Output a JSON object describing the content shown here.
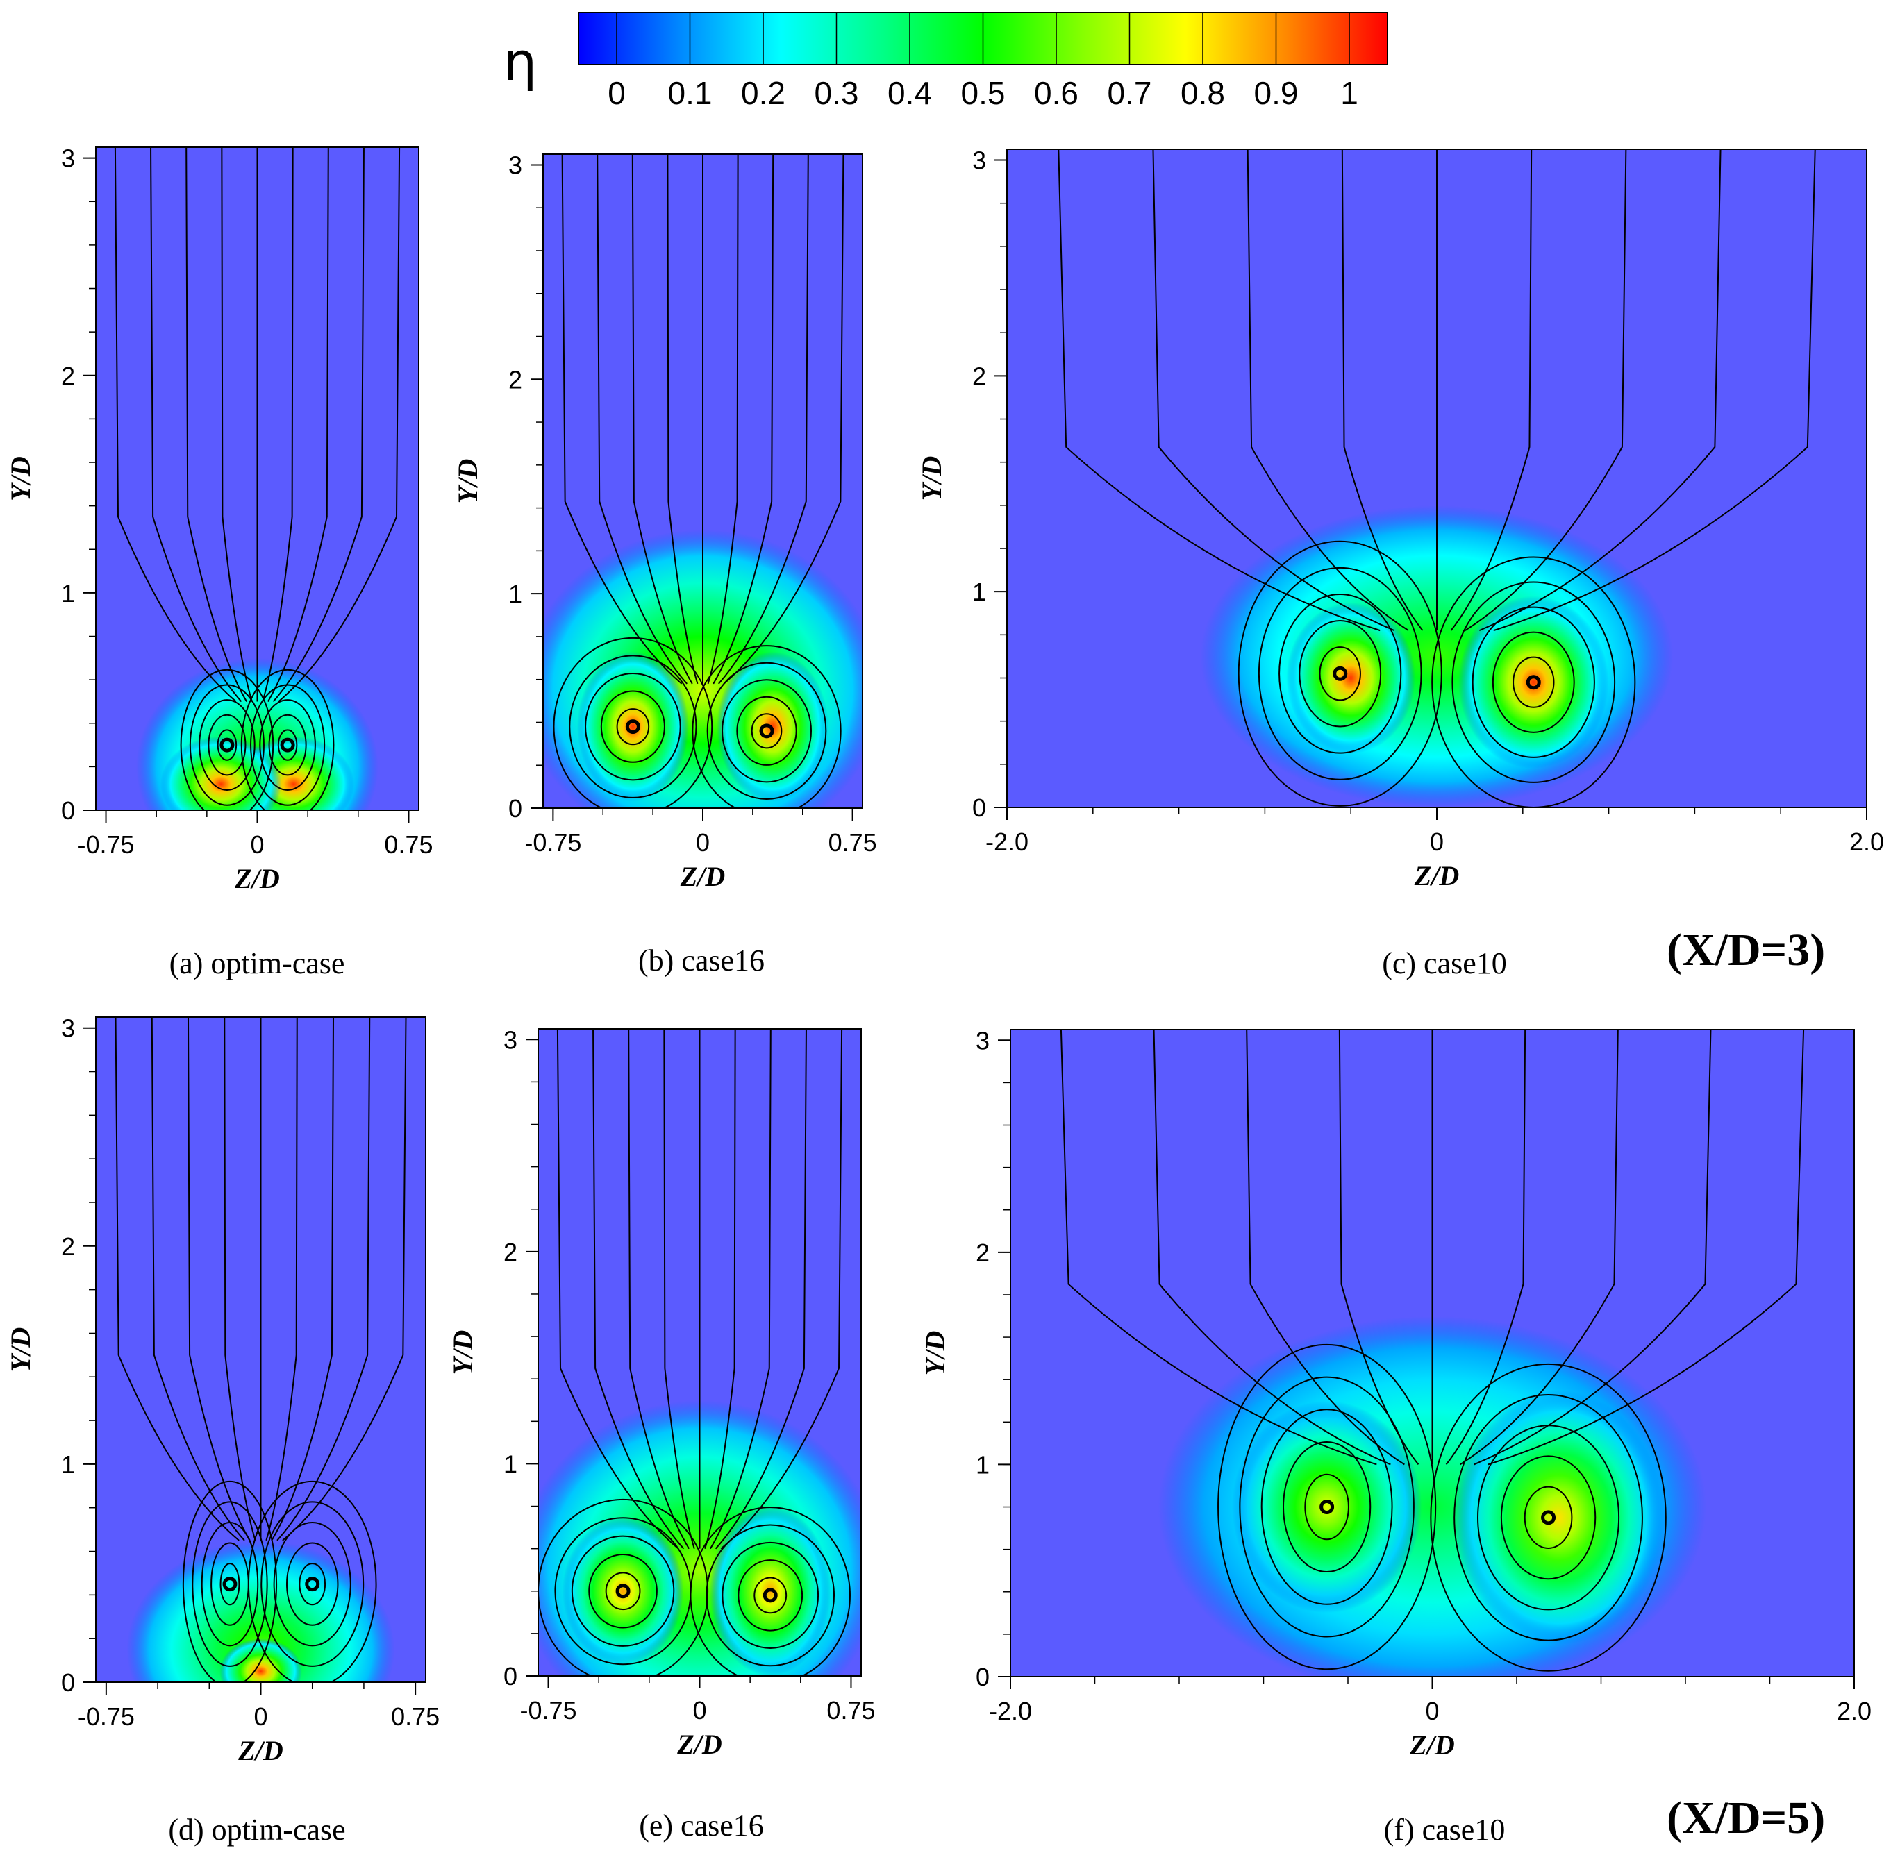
{
  "chart_data": {
    "type": "heatmap",
    "colorbar": {
      "symbol": "η",
      "ticks": [
        "0",
        "0.1",
        "0.2",
        "0.3",
        "0.4",
        "0.5",
        "0.6",
        "0.7",
        "0.8",
        "0.9",
        "1"
      ],
      "range": [
        0,
        1
      ],
      "colors": [
        "#0000ff",
        "#0088ff",
        "#00ffff",
        "#00ff88",
        "#00ff00",
        "#88ff00",
        "#ffff00",
        "#ff8800",
        "#ff0000"
      ]
    },
    "sections": [
      {
        "label": "(X/D=3)"
      },
      {
        "label": "(X/D=5)"
      }
    ],
    "panels": [
      {
        "id": "a",
        "caption": "(a) optim-case",
        "xlabel": "Z/D",
        "ylabel": "Y/D",
        "xlim": [
          -0.8,
          0.8
        ],
        "ylim": [
          0,
          3.05
        ],
        "xticks": [
          "-0.75",
          "0",
          "0.75"
        ],
        "yticks": [
          "0",
          "1",
          "2",
          "3"
        ],
        "hot_spots": [
          {
            "z": -0.18,
            "y": 0.12,
            "eta": 0.95,
            "rz": 0.3,
            "ry": 0.22
          },
          {
            "z": 0.18,
            "y": 0.12,
            "eta": 0.95,
            "rz": 0.3,
            "ry": 0.22
          },
          {
            "z": 0.0,
            "y": 0.2,
            "eta": 0.6,
            "rz": 0.6,
            "ry": 0.5
          }
        ],
        "vortices": [
          {
            "z": -0.15,
            "y": 0.3
          },
          {
            "z": 0.15,
            "y": 0.3
          }
        ]
      },
      {
        "id": "b",
        "caption": "(b) case16",
        "xlabel": "Z/D",
        "ylabel": "Y/D",
        "xlim": [
          -0.8,
          0.8
        ],
        "ylim": [
          0,
          3.05
        ],
        "xticks": [
          "-0.75",
          "0",
          "0.75"
        ],
        "yticks": [
          "0",
          "1",
          "2",
          "3"
        ],
        "hot_spots": [
          {
            "z": -0.35,
            "y": 0.38,
            "eta": 0.95,
            "rz": 0.28,
            "ry": 0.35
          },
          {
            "z": 0.35,
            "y": 0.38,
            "eta": 0.95,
            "rz": 0.28,
            "ry": 0.35
          },
          {
            "z": 0.0,
            "y": 0.55,
            "eta": 0.7,
            "rz": 0.9,
            "ry": 0.75
          }
        ],
        "vortices": [
          {
            "z": -0.35,
            "y": 0.38
          },
          {
            "z": 0.32,
            "y": 0.36
          }
        ]
      },
      {
        "id": "c",
        "caption": "(c) case10",
        "xlabel": "Z/D",
        "ylabel": "Y/D",
        "xlim": [
          -2.0,
          2.0
        ],
        "ylim": [
          0,
          3.05
        ],
        "xticks": [
          "-2.0",
          "0",
          "2.0"
        ],
        "yticks": [
          "0",
          "1",
          "2",
          "3"
        ],
        "hot_spots": [
          {
            "z": -0.4,
            "y": 0.6,
            "eta": 0.95,
            "rz": 0.3,
            "ry": 0.35
          },
          {
            "z": 0.45,
            "y": 0.58,
            "eta": 0.95,
            "rz": 0.35,
            "ry": 0.4
          },
          {
            "z": 0.0,
            "y": 0.7,
            "eta": 0.55,
            "rz": 1.1,
            "ry": 0.7
          }
        ],
        "vortices": [
          {
            "z": -0.45,
            "y": 0.62
          },
          {
            "z": 0.45,
            "y": 0.58
          }
        ]
      },
      {
        "id": "d",
        "caption": "(d) optim-case",
        "xlabel": "Z/D",
        "ylabel": "Y/D",
        "xlim": [
          -0.8,
          0.8
        ],
        "ylim": [
          0,
          3.05
        ],
        "xticks": [
          "-0.75",
          "0",
          "0.75"
        ],
        "yticks": [
          "0",
          "1",
          "2",
          "3"
        ],
        "hot_spots": [
          {
            "z": 0.0,
            "y": 0.05,
            "eta": 0.95,
            "rz": 0.2,
            "ry": 0.15
          },
          {
            "z": 0.0,
            "y": 0.15,
            "eta": 0.6,
            "rz": 0.65,
            "ry": 0.5
          }
        ],
        "vortices": [
          {
            "z": -0.15,
            "y": 0.45
          },
          {
            "z": 0.25,
            "y": 0.45
          }
        ]
      },
      {
        "id": "e",
        "caption": "(e) case16",
        "xlabel": "Z/D",
        "ylabel": "Y/D",
        "xlim": [
          -0.8,
          0.8
        ],
        "ylim": [
          0,
          3.05
        ],
        "xticks": [
          "-0.75",
          "0",
          "0.75"
        ],
        "yticks": [
          "0",
          "1",
          "2",
          "3"
        ],
        "hot_spots": [
          {
            "z": -0.38,
            "y": 0.4,
            "eta": 0.85,
            "rz": 0.3,
            "ry": 0.35
          },
          {
            "z": 0.35,
            "y": 0.4,
            "eta": 0.85,
            "rz": 0.3,
            "ry": 0.4
          },
          {
            "z": 0.0,
            "y": 0.5,
            "eta": 0.65,
            "rz": 0.9,
            "ry": 0.8
          }
        ],
        "vortices": [
          {
            "z": -0.38,
            "y": 0.4
          },
          {
            "z": 0.35,
            "y": 0.38
          }
        ]
      },
      {
        "id": "f",
        "caption": "(f) case10",
        "xlabel": "Z/D",
        "ylabel": "Y/D",
        "xlim": [
          -2.0,
          2.0
        ],
        "ylim": [
          0,
          3.05
        ],
        "xticks": [
          "-2.0",
          "0",
          "2.0"
        ],
        "yticks": [
          "0",
          "1",
          "2",
          "3"
        ],
        "hot_spots": [
          {
            "z": -0.5,
            "y": 0.8,
            "eta": 0.72,
            "rz": 0.45,
            "ry": 0.5
          },
          {
            "z": 0.6,
            "y": 0.75,
            "eta": 0.78,
            "rz": 0.5,
            "ry": 0.6
          },
          {
            "z": 0.0,
            "y": 0.8,
            "eta": 0.45,
            "rz": 1.3,
            "ry": 0.9
          }
        ],
        "vortices": [
          {
            "z": -0.5,
            "y": 0.8
          },
          {
            "z": 0.55,
            "y": 0.75
          }
        ]
      }
    ]
  }
}
